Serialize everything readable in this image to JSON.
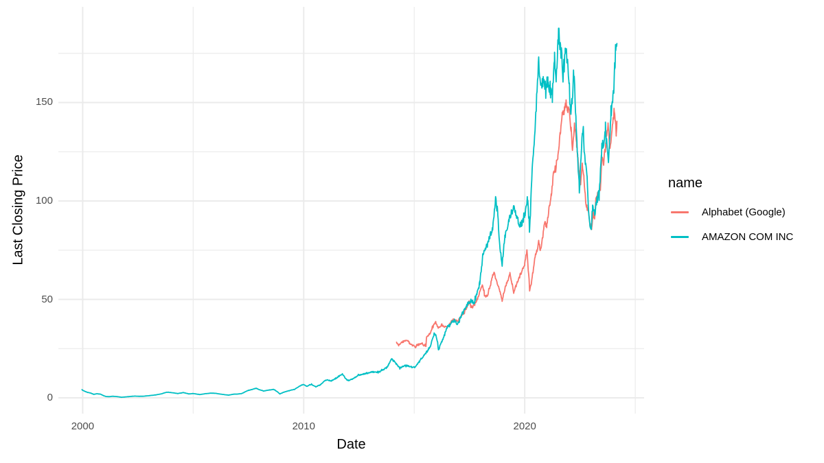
{
  "chart_data": {
    "type": "line",
    "title": "",
    "xlabel": "Date",
    "ylabel": "Last Closing Price",
    "x_domain": [
      1998.9,
      2025.4
    ],
    "y_domain": [
      -8,
      198.6
    ],
    "grid": {
      "visible": true,
      "color": "#EBEBEB"
    },
    "x_ticks": {
      "major": [
        2000,
        2010,
        2020
      ],
      "minor": [
        2005,
        2015,
        2025
      ],
      "labels": [
        "2000",
        "2010",
        "2020"
      ]
    },
    "y_ticks": {
      "major": [
        0,
        50,
        100,
        150
      ],
      "minor": [
        25,
        75,
        125,
        175
      ],
      "labels": [
        "0",
        "50",
        "100",
        "150"
      ]
    },
    "legend": {
      "title": "name",
      "position": "right"
    },
    "tick_label_color": "#4D4D4D",
    "axis_title_color": "#000000",
    "series": [
      {
        "name": "Alphabet (Google)",
        "color": "#F8766D",
        "noise_amplitude": 0.014,
        "points": [
          [
            2014.2,
            27.9
          ],
          [
            2014.3,
            26.9
          ],
          [
            2014.45,
            28.2
          ],
          [
            2014.6,
            29.2
          ],
          [
            2014.72,
            28.8
          ],
          [
            2014.82,
            27.2
          ],
          [
            2014.95,
            26.6
          ],
          [
            2015.05,
            25.6
          ],
          [
            2015.15,
            26.9
          ],
          [
            2015.3,
            27.6
          ],
          [
            2015.42,
            26.8
          ],
          [
            2015.53,
            26.4
          ],
          [
            2015.56,
            31.2
          ],
          [
            2015.7,
            32.4
          ],
          [
            2015.85,
            36.5
          ],
          [
            2015.97,
            38.3
          ],
          [
            2016.1,
            35.3
          ],
          [
            2016.25,
            37.2
          ],
          [
            2016.4,
            35.8
          ],
          [
            2016.55,
            36.2
          ],
          [
            2016.7,
            39.2
          ],
          [
            2016.82,
            40.3
          ],
          [
            2016.95,
            38.6
          ],
          [
            2017.1,
            41.3
          ],
          [
            2017.25,
            42.8
          ],
          [
            2017.4,
            46.8
          ],
          [
            2017.5,
            49.2
          ],
          [
            2017.6,
            45.8
          ],
          [
            2017.75,
            47.5
          ],
          [
            2017.9,
            51.5
          ],
          [
            2018.0,
            55.0
          ],
          [
            2018.08,
            58.0
          ],
          [
            2018.18,
            52.0
          ],
          [
            2018.3,
            51.5
          ],
          [
            2018.42,
            56.0
          ],
          [
            2018.55,
            62.5
          ],
          [
            2018.62,
            63.0
          ],
          [
            2018.72,
            60.0
          ],
          [
            2018.85,
            54.5
          ],
          [
            2018.98,
            49.5
          ],
          [
            2019.1,
            55.5
          ],
          [
            2019.25,
            60.0
          ],
          [
            2019.33,
            63.0
          ],
          [
            2019.42,
            58.5
          ],
          [
            2019.5,
            53.0
          ],
          [
            2019.62,
            57.5
          ],
          [
            2019.75,
            61.0
          ],
          [
            2019.9,
            65.5
          ],
          [
            2020.0,
            68.0
          ],
          [
            2020.1,
            75.5
          ],
          [
            2020.22,
            54.5
          ],
          [
            2020.32,
            59.5
          ],
          [
            2020.45,
            71.0
          ],
          [
            2020.55,
            74.5
          ],
          [
            2020.63,
            79.5
          ],
          [
            2020.7,
            74.0
          ],
          [
            2020.8,
            81.0
          ],
          [
            2020.9,
            88.5
          ],
          [
            2021.0,
            87.5
          ],
          [
            2021.1,
            96.0
          ],
          [
            2021.2,
            103.0
          ],
          [
            2021.3,
            114.0
          ],
          [
            2021.4,
            117.5
          ],
          [
            2021.5,
            123.0
          ],
          [
            2021.6,
            134.0
          ],
          [
            2021.7,
            143.5
          ],
          [
            2021.8,
            146.5
          ],
          [
            2021.87,
            150.0
          ],
          [
            2021.95,
            146.5
          ],
          [
            2022.02,
            144.5
          ],
          [
            2022.1,
            136.0
          ],
          [
            2022.16,
            127.0
          ],
          [
            2022.25,
            139.0
          ],
          [
            2022.35,
            128.5
          ],
          [
            2022.45,
            114.5
          ],
          [
            2022.53,
            108.0
          ],
          [
            2022.6,
            118.5
          ],
          [
            2022.68,
            111.5
          ],
          [
            2022.77,
            97.5
          ],
          [
            2022.85,
            96.0
          ],
          [
            2022.95,
            88.5
          ],
          [
            2023.03,
            86.5
          ],
          [
            2023.1,
            94.5
          ],
          [
            2023.16,
            91.0
          ],
          [
            2023.22,
            101.5
          ],
          [
            2023.32,
            104.0
          ],
          [
            2023.42,
            106.0
          ],
          [
            2023.48,
            122.0
          ],
          [
            2023.57,
            119.5
          ],
          [
            2023.67,
            131.0
          ],
          [
            2023.77,
            138.5
          ],
          [
            2023.84,
            125.5
          ],
          [
            2023.93,
            133.0
          ],
          [
            2024.0,
            140.5
          ],
          [
            2024.05,
            144.5
          ],
          [
            2024.1,
            141.5
          ],
          [
            2024.14,
            134.0
          ],
          [
            2024.17,
            140.5
          ]
        ]
      },
      {
        "name": "AMAZON COM INC",
        "color": "#00BFC4",
        "noise_amplitude": 0.02,
        "points": [
          [
            1999.97,
            4.2
          ],
          [
            2000.08,
            3.4
          ],
          [
            2000.2,
            2.9
          ],
          [
            2000.35,
            2.5
          ],
          [
            2000.5,
            1.8
          ],
          [
            2000.65,
            2.1
          ],
          [
            2000.8,
            1.9
          ],
          [
            2000.95,
            1.1
          ],
          [
            2001.05,
            0.7
          ],
          [
            2001.2,
            0.6
          ],
          [
            2001.35,
            0.8
          ],
          [
            2001.5,
            0.7
          ],
          [
            2001.65,
            0.5
          ],
          [
            2001.75,
            0.3
          ],
          [
            2001.9,
            0.45
          ],
          [
            2002.0,
            0.55
          ],
          [
            2002.2,
            0.75
          ],
          [
            2002.35,
            0.9
          ],
          [
            2002.55,
            0.8
          ],
          [
            2002.75,
            0.85
          ],
          [
            2003.0,
            1.1
          ],
          [
            2003.3,
            1.5
          ],
          [
            2003.55,
            2.0
          ],
          [
            2003.8,
            2.9
          ],
          [
            2004.0,
            2.7
          ],
          [
            2004.3,
            2.2
          ],
          [
            2004.55,
            2.7
          ],
          [
            2004.8,
            2.0
          ],
          [
            2005.0,
            2.2
          ],
          [
            2005.3,
            1.7
          ],
          [
            2005.55,
            2.1
          ],
          [
            2005.8,
            2.4
          ],
          [
            2006.0,
            2.3
          ],
          [
            2006.3,
            1.8
          ],
          [
            2006.6,
            1.4
          ],
          [
            2006.85,
            1.9
          ],
          [
            2007.0,
            1.9
          ],
          [
            2007.2,
            2.2
          ],
          [
            2007.45,
            3.6
          ],
          [
            2007.7,
            4.4
          ],
          [
            2007.85,
            4.9
          ],
          [
            2008.0,
            4.1
          ],
          [
            2008.2,
            3.5
          ],
          [
            2008.45,
            4.0
          ],
          [
            2008.65,
            4.3
          ],
          [
            2008.8,
            3.2
          ],
          [
            2008.92,
            2.0
          ],
          [
            2009.1,
            2.9
          ],
          [
            2009.35,
            3.7
          ],
          [
            2009.6,
            4.4
          ],
          [
            2009.8,
            5.9
          ],
          [
            2009.97,
            6.8
          ],
          [
            2010.15,
            5.9
          ],
          [
            2010.35,
            6.9
          ],
          [
            2010.55,
            5.6
          ],
          [
            2010.75,
            6.7
          ],
          [
            2010.95,
            8.6
          ],
          [
            2011.05,
            9.2
          ],
          [
            2011.25,
            8.6
          ],
          [
            2011.5,
            10.2
          ],
          [
            2011.75,
            12.1
          ],
          [
            2011.9,
            9.8
          ],
          [
            2012.0,
            8.8
          ],
          [
            2012.2,
            9.4
          ],
          [
            2012.45,
            11.4
          ],
          [
            2012.7,
            12.1
          ],
          [
            2012.9,
            12.5
          ],
          [
            2013.1,
            13.2
          ],
          [
            2013.35,
            13.0
          ],
          [
            2013.6,
            14.3
          ],
          [
            2013.8,
            16.0
          ],
          [
            2013.97,
            19.9
          ],
          [
            2014.1,
            18.5
          ],
          [
            2014.35,
            15.1
          ],
          [
            2014.55,
            16.6
          ],
          [
            2014.75,
            16.2
          ],
          [
            2014.9,
            15.3
          ],
          [
            2015.05,
            15.7
          ],
          [
            2015.25,
            18.9
          ],
          [
            2015.45,
            21.6
          ],
          [
            2015.6,
            24.0
          ],
          [
            2015.75,
            26.5
          ],
          [
            2015.9,
            33.0
          ],
          [
            2016.0,
            31.0
          ],
          [
            2016.1,
            24.5
          ],
          [
            2016.3,
            29.9
          ],
          [
            2016.5,
            35.8
          ],
          [
            2016.7,
            38.4
          ],
          [
            2016.85,
            39.5
          ],
          [
            2016.95,
            37.6
          ],
          [
            2017.1,
            40.6
          ],
          [
            2017.3,
            45.3
          ],
          [
            2017.45,
            48.3
          ],
          [
            2017.6,
            49.1
          ],
          [
            2017.72,
            47.8
          ],
          [
            2017.85,
            53.5
          ],
          [
            2017.97,
            58.5
          ],
          [
            2018.1,
            72.0
          ],
          [
            2018.25,
            76.0
          ],
          [
            2018.4,
            81.0
          ],
          [
            2018.55,
            86.0
          ],
          [
            2018.68,
            101.0
          ],
          [
            2018.78,
            93.0
          ],
          [
            2018.88,
            76.0
          ],
          [
            2018.98,
            68.0
          ],
          [
            2019.1,
            82.0
          ],
          [
            2019.3,
            91.0
          ],
          [
            2019.5,
            96.5
          ],
          [
            2019.65,
            91.0
          ],
          [
            2019.78,
            87.5
          ],
          [
            2019.9,
            89.5
          ],
          [
            2020.02,
            94.0
          ],
          [
            2020.12,
            102.0
          ],
          [
            2020.22,
            84.7
          ],
          [
            2020.35,
            118.0
          ],
          [
            2020.5,
            144.0
          ],
          [
            2020.63,
            172.0
          ],
          [
            2020.72,
            158.0
          ],
          [
            2020.85,
            161.0
          ],
          [
            2020.95,
            159.0
          ],
          [
            2021.05,
            160.5
          ],
          [
            2021.15,
            156.0
          ],
          [
            2021.25,
            153.0
          ],
          [
            2021.35,
            173.0
          ],
          [
            2021.42,
            161.0
          ],
          [
            2021.53,
            186.0
          ],
          [
            2021.62,
            178.5
          ],
          [
            2021.73,
            167.0
          ],
          [
            2021.83,
            176.0
          ],
          [
            2021.92,
            171.0
          ],
          [
            2022.0,
            162.0
          ],
          [
            2022.07,
            144.0
          ],
          [
            2022.15,
            152.0
          ],
          [
            2022.22,
            166.0
          ],
          [
            2022.32,
            140.0
          ],
          [
            2022.4,
            121.0
          ],
          [
            2022.47,
            106.0
          ],
          [
            2022.57,
            128.0
          ],
          [
            2022.63,
            136.0
          ],
          [
            2022.72,
            121.0
          ],
          [
            2022.82,
            113.0
          ],
          [
            2022.9,
            93.0
          ],
          [
            2022.99,
            84.0
          ],
          [
            2023.07,
            97.0
          ],
          [
            2023.17,
            93.0
          ],
          [
            2023.27,
            102.0
          ],
          [
            2023.37,
            104.0
          ],
          [
            2023.47,
            124.0
          ],
          [
            2023.57,
            130.0
          ],
          [
            2023.65,
            135.0
          ],
          [
            2023.73,
            128.0
          ],
          [
            2023.8,
            120.0
          ],
          [
            2023.9,
            144.0
          ],
          [
            2023.99,
            152.0
          ],
          [
            2024.07,
            169.0
          ],
          [
            2024.12,
            174.0
          ],
          [
            2024.17,
            180.0
          ]
        ]
      }
    ]
  }
}
